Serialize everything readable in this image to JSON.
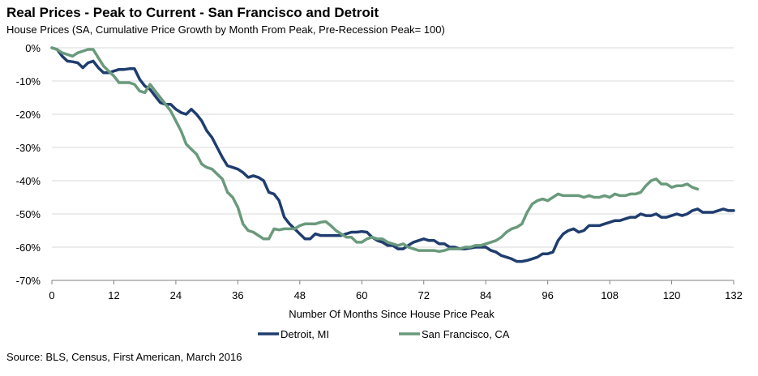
{
  "header": {
    "title": "Real Prices - Peak to Current - San Francisco and Detroit",
    "subtitle": "House Prices (SA, Cumulative Price Growth by Month From Peak, Pre-Recession Peak= 100)"
  },
  "footer": {
    "source": "Source: BLS, Census, First American, March 2016"
  },
  "chart_data": {
    "type": "line",
    "title": "Real Prices - Peak to Current - San Francisco and Detroit",
    "subtitle": "House Prices (SA, Cumulative Price Growth by Month From Peak, Pre-Recession Peak= 100)",
    "xlabel": "Number Of Months Since House Price Peak",
    "ylabel": "",
    "xlim": [
      0,
      132
    ],
    "ylim": [
      -70,
      0
    ],
    "x_ticks": [
      0,
      12,
      24,
      36,
      48,
      60,
      72,
      84,
      96,
      108,
      120,
      132
    ],
    "y_ticks": [
      0,
      -10,
      -20,
      -30,
      -40,
      -50,
      -60,
      -70
    ],
    "y_tick_labels": [
      "0%",
      "-10%",
      "-20%",
      "-30%",
      "-40%",
      "-50%",
      "-60%",
      "-70%"
    ],
    "grid": "horizontal",
    "legend": "bottom",
    "series": [
      {
        "name": "Detroit, MI",
        "color": "#1f3d6e",
        "points": [
          [
            0,
            0
          ],
          [
            1,
            -0.5
          ],
          [
            2,
            -2.5
          ],
          [
            3,
            -4
          ],
          [
            4,
            -4.2
          ],
          [
            5,
            -4.5
          ],
          [
            6,
            -6
          ],
          [
            7,
            -4.5
          ],
          [
            8,
            -4
          ],
          [
            9,
            -6
          ],
          [
            10,
            -7.5
          ],
          [
            11,
            -7.5
          ],
          [
            12,
            -7
          ],
          [
            13,
            -6.5
          ],
          [
            14,
            -6.5
          ],
          [
            15,
            -6.3
          ],
          [
            16,
            -6.3
          ],
          [
            17,
            -9.5
          ],
          [
            18,
            -11.5
          ],
          [
            19,
            -12.5
          ],
          [
            20,
            -14.5
          ],
          [
            21,
            -16.5
          ],
          [
            22,
            -17
          ],
          [
            23,
            -17
          ],
          [
            24,
            -18.5
          ],
          [
            25,
            -19.5
          ],
          [
            26,
            -20
          ],
          [
            27,
            -18.5
          ],
          [
            28,
            -20
          ],
          [
            29,
            -22
          ],
          [
            30,
            -25
          ],
          [
            31,
            -27
          ],
          [
            32,
            -30
          ],
          [
            33,
            -33
          ],
          [
            34,
            -35.5
          ],
          [
            35,
            -36
          ],
          [
            36,
            -36.5
          ],
          [
            37,
            -37.5
          ],
          [
            38,
            -39
          ],
          [
            39,
            -38.5
          ],
          [
            40,
            -39
          ],
          [
            41,
            -40
          ],
          [
            42,
            -43.5
          ],
          [
            43,
            -44
          ],
          [
            44,
            -46
          ],
          [
            45,
            -51
          ],
          [
            46,
            -53
          ],
          [
            47,
            -54.5
          ],
          [
            48,
            -56
          ],
          [
            49,
            -57.5
          ],
          [
            50,
            -57.5
          ],
          [
            51,
            -56
          ],
          [
            52,
            -56.5
          ],
          [
            53,
            -56.5
          ],
          [
            54,
            -56.5
          ],
          [
            55,
            -56.5
          ],
          [
            56,
            -56.5
          ],
          [
            57,
            -56
          ],
          [
            58,
            -55.5
          ],
          [
            59,
            -55.5
          ],
          [
            60,
            -55.3
          ],
          [
            61,
            -55.5
          ],
          [
            62,
            -57
          ],
          [
            63,
            -58
          ],
          [
            64,
            -58.5
          ],
          [
            65,
            -59.5
          ],
          [
            66,
            -59.5
          ],
          [
            67,
            -60.5
          ],
          [
            68,
            -60.5
          ],
          [
            69,
            -59.5
          ],
          [
            70,
            -58.5
          ],
          [
            71,
            -58
          ],
          [
            72,
            -57.5
          ],
          [
            73,
            -58
          ],
          [
            74,
            -58
          ],
          [
            75,
            -59
          ],
          [
            76,
            -59
          ],
          [
            77,
            -60
          ],
          [
            78,
            -60
          ],
          [
            79,
            -60.5
          ],
          [
            80,
            -60.5
          ],
          [
            81,
            -60.3
          ],
          [
            82,
            -60
          ],
          [
            83,
            -60
          ],
          [
            84,
            -60
          ],
          [
            85,
            -61
          ],
          [
            86,
            -61.5
          ],
          [
            87,
            -62.5
          ],
          [
            88,
            -63
          ],
          [
            89,
            -63.5
          ],
          [
            90,
            -64.3
          ],
          [
            91,
            -64.3
          ],
          [
            92,
            -64
          ],
          [
            93,
            -63.5
          ],
          [
            94,
            -63
          ],
          [
            95,
            -62
          ],
          [
            96,
            -62
          ],
          [
            97,
            -61.5
          ],
          [
            98,
            -58
          ],
          [
            99,
            -56
          ],
          [
            100,
            -55
          ],
          [
            101,
            -54.5
          ],
          [
            102,
            -55.5
          ],
          [
            103,
            -55
          ],
          [
            104,
            -53.5
          ],
          [
            105,
            -53.5
          ],
          [
            106,
            -53.5
          ],
          [
            107,
            -53
          ],
          [
            108,
            -52.5
          ],
          [
            109,
            -52
          ],
          [
            110,
            -52
          ],
          [
            111,
            -51.5
          ],
          [
            112,
            -51
          ],
          [
            113,
            -51
          ],
          [
            114,
            -50
          ],
          [
            115,
            -50.5
          ],
          [
            116,
            -50.5
          ],
          [
            117,
            -50
          ],
          [
            118,
            -51
          ],
          [
            119,
            -51
          ],
          [
            120,
            -50.5
          ],
          [
            121,
            -50
          ],
          [
            122,
            -50.5
          ],
          [
            123,
            -50
          ],
          [
            124,
            -49
          ],
          [
            125,
            -48.5
          ],
          [
            126,
            -49.5
          ],
          [
            127,
            -49.5
          ],
          [
            128,
            -49.5
          ],
          [
            129,
            -49
          ],
          [
            130,
            -48.5
          ],
          [
            131,
            -49
          ],
          [
            132,
            -49
          ]
        ]
      },
      {
        "name": "San Francisco, CA",
        "color": "#6a9a7c",
        "points": [
          [
            0,
            0
          ],
          [
            1,
            -0.5
          ],
          [
            2,
            -1.5
          ],
          [
            3,
            -2
          ],
          [
            4,
            -2.5
          ],
          [
            5,
            -1.5
          ],
          [
            6,
            -1
          ],
          [
            7,
            -0.5
          ],
          [
            8,
            -0.5
          ],
          [
            9,
            -3
          ],
          [
            10,
            -5.5
          ],
          [
            11,
            -7
          ],
          [
            12,
            -8.5
          ],
          [
            13,
            -10.5
          ],
          [
            14,
            -10.5
          ],
          [
            15,
            -10.5
          ],
          [
            16,
            -11
          ],
          [
            17,
            -13
          ],
          [
            18,
            -13.5
          ],
          [
            19,
            -11
          ],
          [
            20,
            -13
          ],
          [
            21,
            -15
          ],
          [
            22,
            -17
          ],
          [
            23,
            -19
          ],
          [
            24,
            -22
          ],
          [
            25,
            -25
          ],
          [
            26,
            -29
          ],
          [
            27,
            -30.5
          ],
          [
            28,
            -32
          ],
          [
            29,
            -35
          ],
          [
            30,
            -36
          ],
          [
            31,
            -36.5
          ],
          [
            32,
            -38
          ],
          [
            33,
            -39.5
          ],
          [
            34,
            -43.5
          ],
          [
            35,
            -45
          ],
          [
            36,
            -48
          ],
          [
            37,
            -53
          ],
          [
            38,
            -55
          ],
          [
            39,
            -55.5
          ],
          [
            40,
            -56.5
          ],
          [
            41,
            -57.5
          ],
          [
            42,
            -57.5
          ],
          [
            43,
            -54.5
          ],
          [
            44,
            -54.8
          ],
          [
            45,
            -54.5
          ],
          [
            46,
            -54.5
          ],
          [
            47,
            -54.5
          ],
          [
            48,
            -53.5
          ],
          [
            49,
            -53
          ],
          [
            50,
            -53
          ],
          [
            51,
            -53
          ],
          [
            52,
            -52.5
          ],
          [
            53,
            -52.3
          ],
          [
            54,
            -53.5
          ],
          [
            55,
            -55
          ],
          [
            56,
            -56
          ],
          [
            57,
            -57
          ],
          [
            58,
            -57
          ],
          [
            59,
            -58.5
          ],
          [
            60,
            -58.5
          ],
          [
            61,
            -57.5
          ],
          [
            62,
            -57
          ],
          [
            63,
            -57.5
          ],
          [
            64,
            -57.5
          ],
          [
            65,
            -58.5
          ],
          [
            66,
            -59
          ],
          [
            67,
            -59.5
          ],
          [
            68,
            -59
          ],
          [
            69,
            -60
          ],
          [
            70,
            -60.5
          ],
          [
            71,
            -61
          ],
          [
            72,
            -61
          ],
          [
            73,
            -61
          ],
          [
            74,
            -61
          ],
          [
            75,
            -61.3
          ],
          [
            76,
            -61
          ],
          [
            77,
            -60.5
          ],
          [
            78,
            -60.5
          ],
          [
            79,
            -60.5
          ],
          [
            80,
            -60
          ],
          [
            81,
            -60
          ],
          [
            82,
            -59.5
          ],
          [
            83,
            -59.5
          ],
          [
            84,
            -59
          ],
          [
            85,
            -58.5
          ],
          [
            86,
            -58
          ],
          [
            87,
            -57
          ],
          [
            88,
            -55.5
          ],
          [
            89,
            -54.5
          ],
          [
            90,
            -54
          ],
          [
            91,
            -53
          ],
          [
            92,
            -49.5
          ],
          [
            93,
            -47
          ],
          [
            94,
            -46
          ],
          [
            95,
            -45.5
          ],
          [
            96,
            -46
          ],
          [
            97,
            -45
          ],
          [
            98,
            -44
          ],
          [
            99,
            -44.5
          ],
          [
            100,
            -44.5
          ],
          [
            101,
            -44.5
          ],
          [
            102,
            -44.5
          ],
          [
            103,
            -45
          ],
          [
            104,
            -44.5
          ],
          [
            105,
            -45
          ],
          [
            106,
            -45
          ],
          [
            107,
            -44.5
          ],
          [
            108,
            -45
          ],
          [
            109,
            -44
          ],
          [
            110,
            -44.5
          ],
          [
            111,
            -44.5
          ],
          [
            112,
            -44
          ],
          [
            113,
            -44
          ],
          [
            114,
            -43.5
          ],
          [
            115,
            -41.5
          ],
          [
            116,
            -40
          ],
          [
            117,
            -39.5
          ],
          [
            118,
            -41
          ],
          [
            119,
            -41
          ],
          [
            120,
            -42
          ],
          [
            121,
            -41.5
          ],
          [
            122,
            -41.5
          ],
          [
            123,
            -41
          ],
          [
            124,
            -42
          ],
          [
            125,
            -42.5
          ]
        ]
      }
    ]
  }
}
